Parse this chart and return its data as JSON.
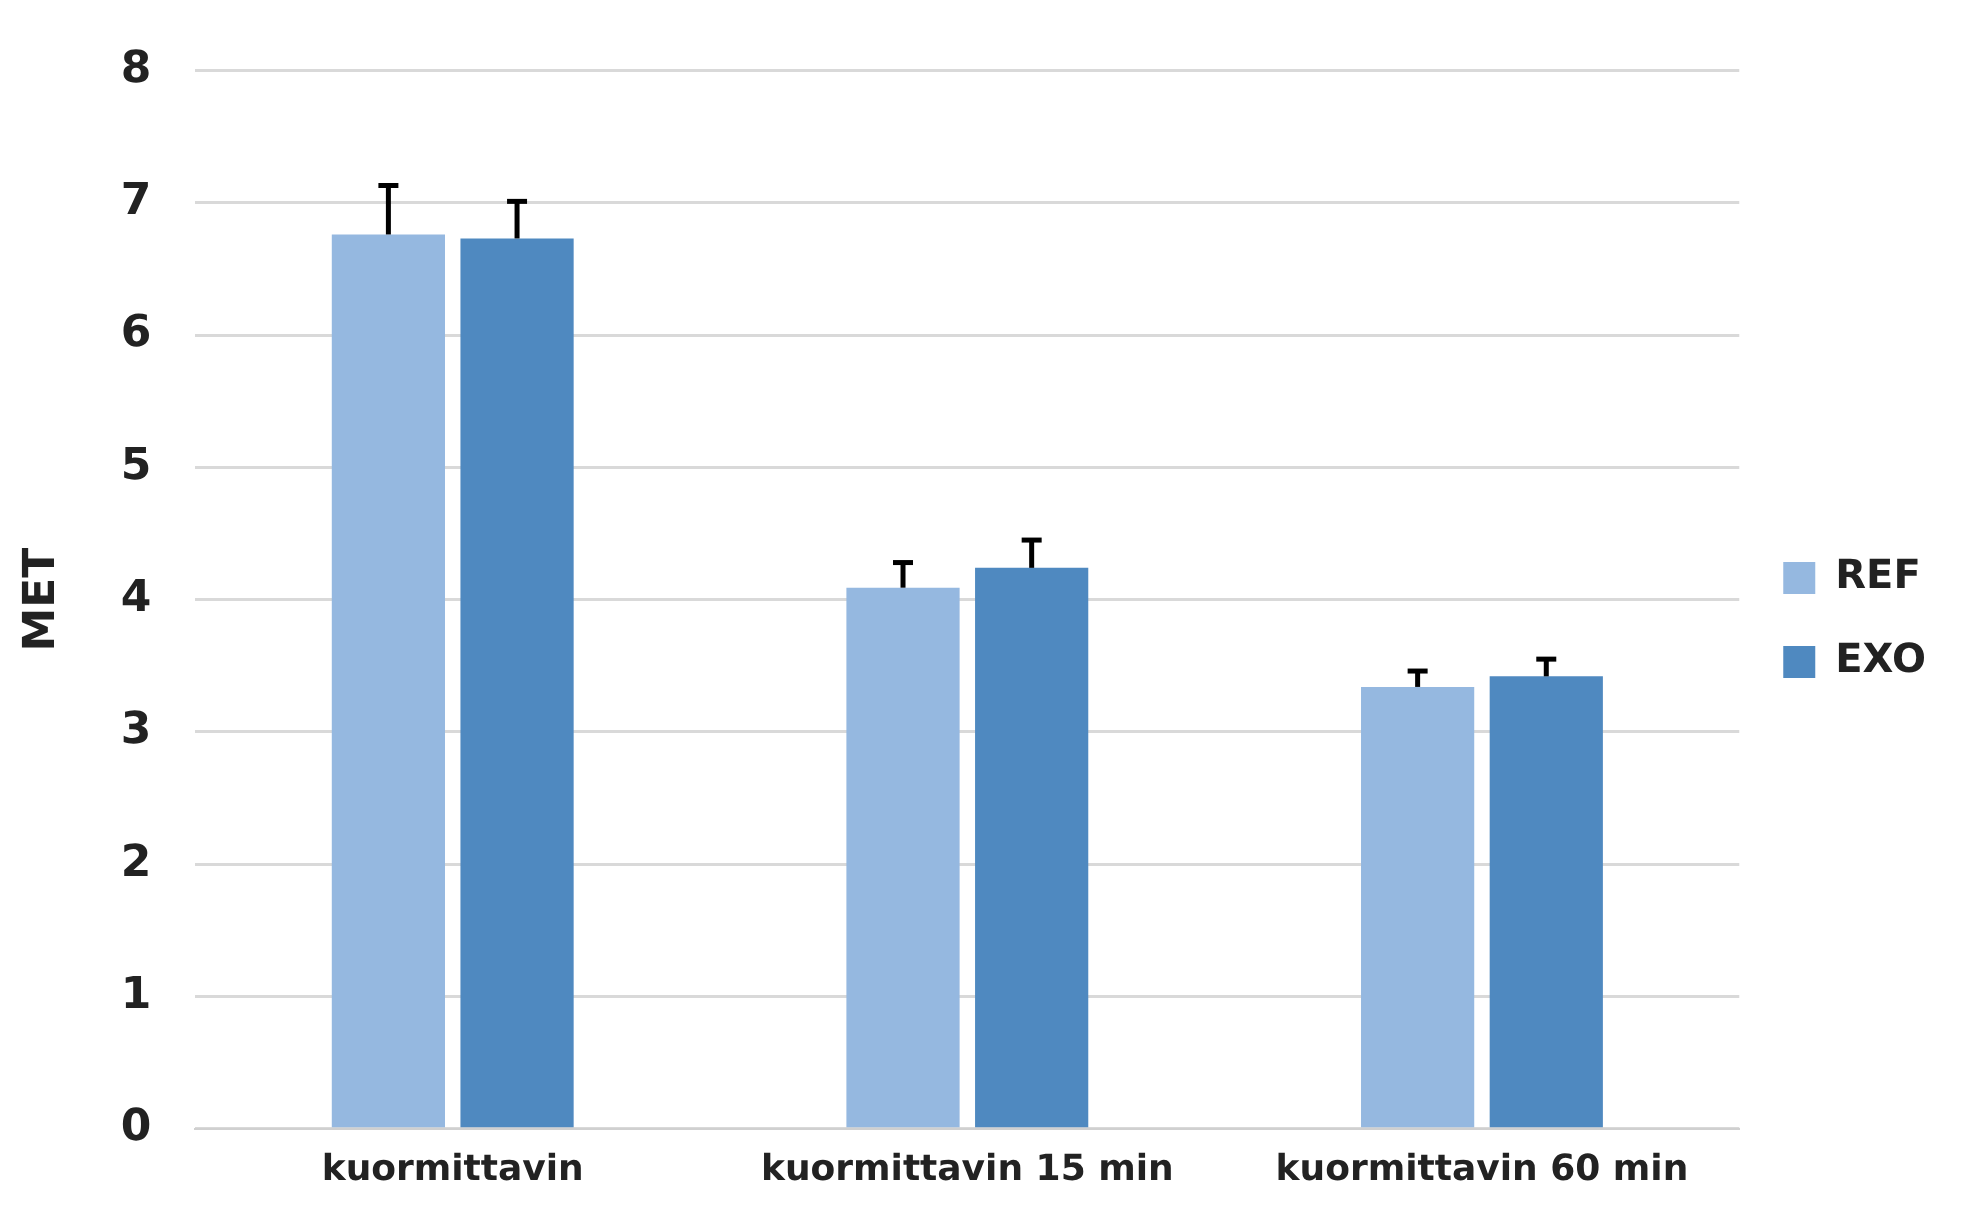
{
  "chart_data": {
    "type": "bar",
    "ylabel": "MET",
    "categories": [
      "kuormittavin",
      "kuormittavin 15 min",
      "kuormittavin 60 min"
    ],
    "series": [
      {
        "name": "REF",
        "color": "#95b8e0",
        "values": [
          6.76,
          4.09,
          3.34
        ],
        "errors": [
          [
            6.76,
            7.13
          ],
          [
            4.09,
            4.28
          ],
          [
            3.34,
            3.46
          ]
        ]
      },
      {
        "name": "EXO",
        "color": "#4f89c0",
        "values": [
          6.73,
          4.24,
          3.42
        ],
        "errors": [
          [
            6.73,
            7.01
          ],
          [
            4.24,
            4.45
          ],
          [
            3.42,
            3.55
          ]
        ]
      }
    ],
    "ylim": [
      0,
      8
    ],
    "yticks": [
      0,
      1,
      2,
      3,
      4,
      5,
      6,
      7,
      8
    ],
    "grid": "y",
    "legend": "right"
  }
}
